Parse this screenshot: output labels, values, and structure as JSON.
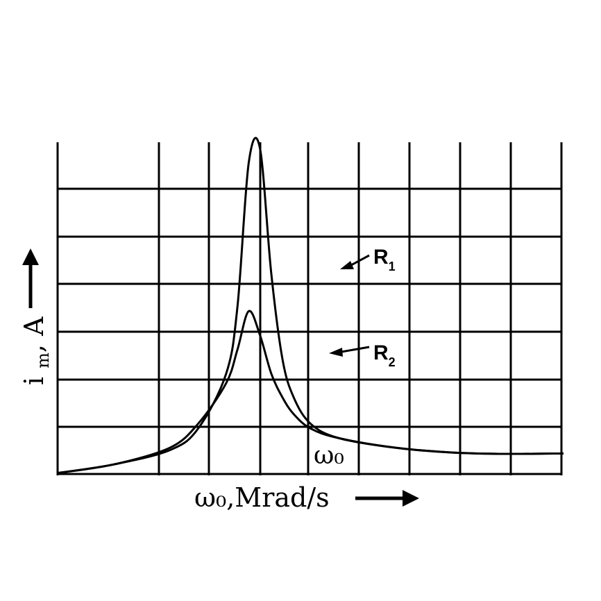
{
  "chart_data": {
    "type": "line",
    "xlabel": "ω₀,Mrad/s",
    "ylabel": "i_m, A",
    "peak_label": "ω₀",
    "grid": true,
    "series": [
      {
        "name": "R₁",
        "label_main": "R",
        "label_sub": "1",
        "x": [
          0,
          1,
          2,
          2.5,
          3,
          3.2,
          3.4,
          3.6,
          3.8,
          4.0,
          4.2,
          4.5,
          5,
          6,
          7,
          8,
          9
        ],
        "y": [
          0.02,
          0.2,
          0.5,
          0.95,
          2.1,
          3.5,
          6.5,
          6.8,
          4.2,
          2.4,
          1.6,
          1.05,
          0.75,
          0.55,
          0.45,
          0.42,
          0.43
        ]
      },
      {
        "name": "R₂",
        "label_main": "R",
        "label_sub": "2",
        "x": [
          0,
          1,
          2,
          2.5,
          3,
          3.2,
          3.4,
          3.6,
          3.8,
          4.0,
          4.2,
          4.5,
          5,
          6,
          7,
          8,
          9
        ],
        "y": [
          0.02,
          0.2,
          0.55,
          1.05,
          1.9,
          2.6,
          3.4,
          2.9,
          2.1,
          1.6,
          1.25,
          0.95,
          0.75,
          0.55,
          0.45,
          0.42,
          0.43
        ]
      }
    ]
  }
}
